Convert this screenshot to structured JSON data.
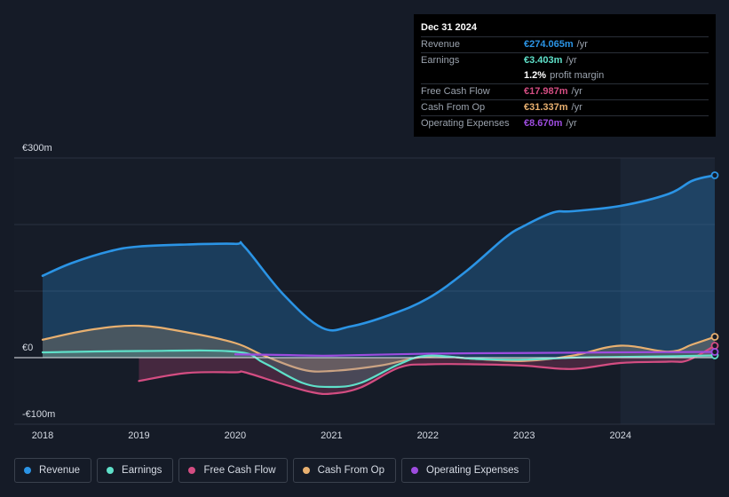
{
  "chart_data": {
    "type": "area",
    "title": "",
    "xlabel": "",
    "ylabel": "",
    "currency": "€",
    "ylim": [
      -100,
      300
    ],
    "y_tick_labels": [
      {
        "value": 300,
        "label": "€300m"
      },
      {
        "value": 0,
        "label": "€0"
      },
      {
        "value": -100,
        "label": "-€100m"
      }
    ],
    "x_ticks": [
      2018,
      2019,
      2020,
      2021,
      2022,
      2023,
      2024
    ],
    "x_range": [
      2017.7,
      2024.98
    ],
    "forecast_start": 2024.0,
    "series": [
      {
        "name": "Revenue",
        "color": "#2b94e5",
        "fill": true,
        "points": [
          [
            2018.0,
            123
          ],
          [
            2018.3,
            142
          ],
          [
            2018.7,
            160
          ],
          [
            2019.0,
            167
          ],
          [
            2019.5,
            170
          ],
          [
            2020.0,
            171
          ],
          [
            2020.1,
            166
          ],
          [
            2020.5,
            95
          ],
          [
            2020.9,
            45
          ],
          [
            2021.2,
            47
          ],
          [
            2021.6,
            64
          ],
          [
            2022.0,
            89
          ],
          [
            2022.4,
            130
          ],
          [
            2022.8,
            180
          ],
          [
            2023.0,
            198
          ],
          [
            2023.3,
            218
          ],
          [
            2023.5,
            220
          ],
          [
            2024.0,
            228
          ],
          [
            2024.5,
            246
          ],
          [
            2024.75,
            266
          ],
          [
            2024.98,
            274
          ]
        ]
      },
      {
        "name": "Earnings",
        "color": "#5fe0c9",
        "fill": true,
        "points": [
          [
            2018.0,
            8
          ],
          [
            2019.0,
            10
          ],
          [
            2020.0,
            9
          ],
          [
            2020.3,
            -8
          ],
          [
            2020.7,
            -38
          ],
          [
            2021.0,
            -44
          ],
          [
            2021.3,
            -38
          ],
          [
            2021.7,
            -10
          ],
          [
            2022.0,
            3
          ],
          [
            2022.5,
            -2
          ],
          [
            2023.0,
            -3
          ],
          [
            2023.5,
            0
          ],
          [
            2024.0,
            1
          ],
          [
            2024.5,
            2
          ],
          [
            2024.98,
            3.4
          ]
        ]
      },
      {
        "name": "Free Cash Flow",
        "color": "#d44d82",
        "fill": true,
        "points": [
          [
            2019.0,
            -35
          ],
          [
            2019.5,
            -23
          ],
          [
            2020.0,
            -22
          ],
          [
            2020.1,
            -22
          ],
          [
            2020.5,
            -40
          ],
          [
            2020.8,
            -52
          ],
          [
            2021.0,
            -54
          ],
          [
            2021.3,
            -45
          ],
          [
            2021.7,
            -15
          ],
          [
            2022.0,
            -10
          ],
          [
            2022.5,
            -10
          ],
          [
            2023.0,
            -12
          ],
          [
            2023.5,
            -17
          ],
          [
            2024.0,
            -8
          ],
          [
            2024.5,
            -6
          ],
          [
            2024.7,
            -4
          ],
          [
            2024.98,
            18
          ]
        ]
      },
      {
        "name": "Cash From Op",
        "color": "#e8b070",
        "fill": true,
        "points": [
          [
            2018.0,
            27
          ],
          [
            2018.5,
            42
          ],
          [
            2019.0,
            48
          ],
          [
            2019.5,
            38
          ],
          [
            2020.0,
            22
          ],
          [
            2020.3,
            3
          ],
          [
            2020.7,
            -18
          ],
          [
            2021.0,
            -20
          ],
          [
            2021.5,
            -12
          ],
          [
            2022.0,
            2
          ],
          [
            2022.5,
            -2
          ],
          [
            2023.0,
            -5
          ],
          [
            2023.5,
            3
          ],
          [
            2024.0,
            18
          ],
          [
            2024.5,
            9
          ],
          [
            2024.75,
            20
          ],
          [
            2024.98,
            31.3
          ]
        ]
      },
      {
        "name": "Operating Expenses",
        "color": "#9d4cdf",
        "fill": false,
        "points": [
          [
            2020.0,
            5
          ],
          [
            2020.5,
            4
          ],
          [
            2021.0,
            3
          ],
          [
            2022.0,
            6
          ],
          [
            2023.0,
            7
          ],
          [
            2024.0,
            8
          ],
          [
            2024.98,
            8.7
          ]
        ]
      }
    ]
  },
  "tooltip": {
    "date": "Dec 31 2024",
    "rows": [
      {
        "label": "Revenue",
        "value": "€274.065m",
        "unit": "/yr",
        "color": "#2b94e5"
      },
      {
        "label": "Earnings",
        "value": "€3.403m",
        "unit": "/yr",
        "color": "#5fe0c9"
      },
      {
        "label": "",
        "value": "1.2%",
        "unit": "profit margin",
        "color": "#ffffff"
      },
      {
        "label": "Free Cash Flow",
        "value": "€17.987m",
        "unit": "/yr",
        "color": "#d44d82"
      },
      {
        "label": "Cash From Op",
        "value": "€31.337m",
        "unit": "/yr",
        "color": "#e8b070"
      },
      {
        "label": "Operating Expenses",
        "value": "€8.670m",
        "unit": "/yr",
        "color": "#9d4cdf"
      }
    ]
  },
  "legend": [
    {
      "label": "Revenue",
      "color": "#2b94e5"
    },
    {
      "label": "Earnings",
      "color": "#5fe0c9"
    },
    {
      "label": "Free Cash Flow",
      "color": "#d44d82"
    },
    {
      "label": "Cash From Op",
      "color": "#e8b070"
    },
    {
      "label": "Operating Expenses",
      "color": "#9d4cdf"
    }
  ]
}
